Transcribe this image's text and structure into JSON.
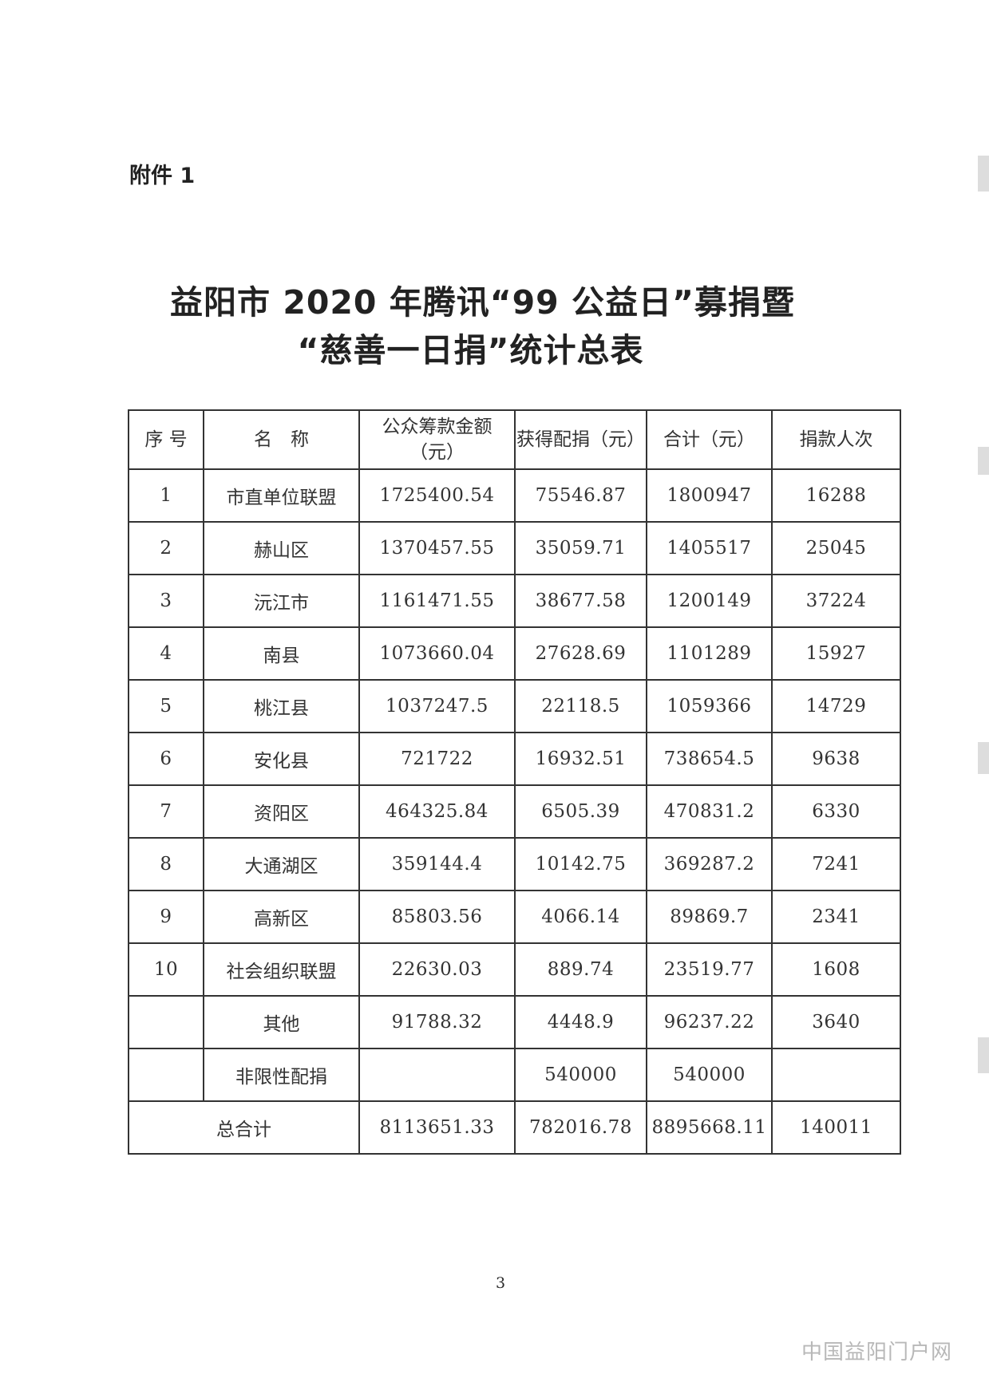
{
  "attachment_label": "附件 1",
  "title": {
    "line1": "益阳市 2020 年腾讯“99 公益日”募捐暨",
    "line2": "“慈善一日捐”统计总表"
  },
  "table": {
    "headers": [
      "序 号",
      "名　称",
      "公众筹款金额（元）",
      "获得配捐（元）",
      "合计（元）",
      "捐款人次"
    ],
    "rows": [
      {
        "no": "1",
        "name": "市直单位联盟",
        "public": "1725400.54",
        "match": "75546.87",
        "total": "1800947",
        "donors": "16288"
      },
      {
        "no": "2",
        "name": "赫山区",
        "public": "1370457.55",
        "match": "35059.71",
        "total": "1405517",
        "donors": "25045"
      },
      {
        "no": "3",
        "name": "沅江市",
        "public": "1161471.55",
        "match": "38677.58",
        "total": "1200149",
        "donors": "37224"
      },
      {
        "no": "4",
        "name": "南县",
        "public": "1073660.04",
        "match": "27628.69",
        "total": "1101289",
        "donors": "15927"
      },
      {
        "no": "5",
        "name": "桃江县",
        "public": "1037247.5",
        "match": "22118.5",
        "total": "1059366",
        "donors": "14729"
      },
      {
        "no": "6",
        "name": "安化县",
        "public": "721722",
        "match": "16932.51",
        "total": "738654.5",
        "donors": "9638"
      },
      {
        "no": "7",
        "name": "资阳区",
        "public": "464325.84",
        "match": "6505.39",
        "total": "470831.2",
        "donors": "6330"
      },
      {
        "no": "8",
        "name": "大通湖区",
        "public": "359144.4",
        "match": "10142.75",
        "total": "369287.2",
        "donors": "7241"
      },
      {
        "no": "9",
        "name": "高新区",
        "public": "85803.56",
        "match": "4066.14",
        "total": "89869.7",
        "donors": "2341"
      },
      {
        "no": "10",
        "name": "社会组织联盟",
        "public": "22630.03",
        "match": "889.74",
        "total": "23519.77",
        "donors": "1608"
      },
      {
        "no": "",
        "name": "其他",
        "public": "91788.32",
        "match": "4448.9",
        "total": "96237.22",
        "donors": "3640"
      },
      {
        "no": "",
        "name": "非限性配捐",
        "public": "",
        "match": "540000",
        "total": "540000",
        "donors": ""
      }
    ],
    "grand_total": {
      "label": "总合计",
      "public": "8113651.33",
      "match": "782016.78",
      "total": "8895668.11",
      "donors": "140011"
    }
  },
  "page_number": "3",
  "watermark": "中国益阳门户网"
}
